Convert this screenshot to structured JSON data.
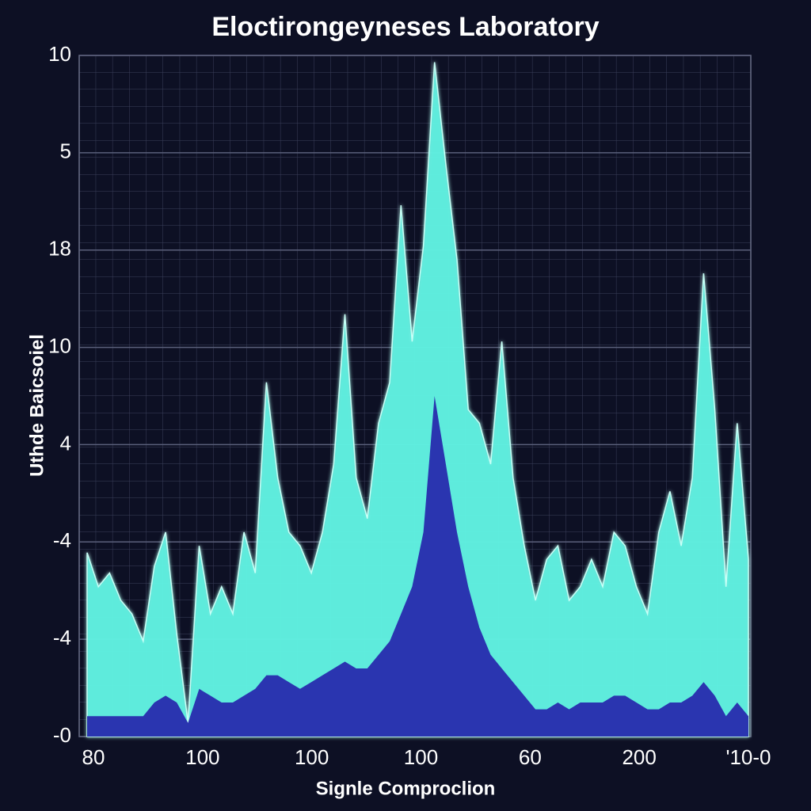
{
  "chart_data": {
    "type": "area",
    "title": "Eloctirongeyneses Laboratory",
    "x_label": "Signle Comproclion",
    "y_label": "Uthde Baicsoiel",
    "y_labels": [
      "10",
      "5",
      "18",
      "10",
      "4",
      "-4",
      "-4",
      "-0"
    ],
    "x_labels": [
      "80",
      "100",
      "100",
      "100",
      "60",
      "200",
      "'10-0"
    ],
    "ylim": [
      0,
      100
    ],
    "grid": true,
    "series": [
      {
        "color": "#5ff0e0",
        "values": [
          27,
          22,
          24,
          20,
          18,
          14,
          25,
          30,
          15,
          2,
          28,
          18,
          22,
          18,
          30,
          24,
          52,
          38,
          30,
          28,
          24,
          30,
          40,
          62,
          38,
          32,
          46,
          52,
          78,
          58,
          72,
          99,
          84,
          70,
          48,
          46,
          40,
          58,
          38,
          28,
          20,
          26,
          28,
          20,
          22,
          26,
          22,
          30,
          28,
          22,
          18,
          30,
          36,
          28,
          38,
          68,
          48,
          22,
          46,
          26
        ]
      },
      {
        "color": "#2a35b0",
        "values": [
          3,
          3,
          3,
          3,
          3,
          3,
          5,
          6,
          5,
          2,
          7,
          6,
          5,
          5,
          6,
          7,
          9,
          9,
          8,
          7,
          8,
          9,
          10,
          11,
          10,
          10,
          12,
          14,
          18,
          22,
          30,
          50,
          40,
          30,
          22,
          16,
          12,
          10,
          8,
          6,
          4,
          4,
          5,
          4,
          5,
          5,
          5,
          6,
          6,
          5,
          4,
          4,
          5,
          5,
          6,
          8,
          6,
          3,
          5,
          3
        ]
      }
    ]
  }
}
